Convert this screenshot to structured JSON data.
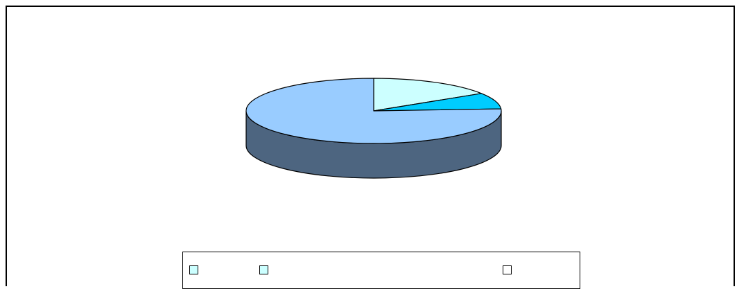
{
  "chart_data": {
    "type": "pie",
    "title": "",
    "three_d": true,
    "slices": [
      {
        "label": "",
        "value": 16,
        "color": "#CCFFFF",
        "side_color": "#8FB3B3"
      },
      {
        "label": "",
        "value": 8,
        "color": "#00CCFF",
        "side_color": "#006C87"
      },
      {
        "label": "",
        "value": 76,
        "color": "#99CCFF",
        "side_color": "#4D6580"
      }
    ],
    "legend": {
      "placement": "bottom",
      "items": [
        {
          "label": "",
          "color": "#CCFFFF"
        },
        {
          "label": "",
          "color": "#CCFFFF"
        },
        {
          "label": "",
          "color": "#FFFFFF"
        }
      ]
    }
  }
}
